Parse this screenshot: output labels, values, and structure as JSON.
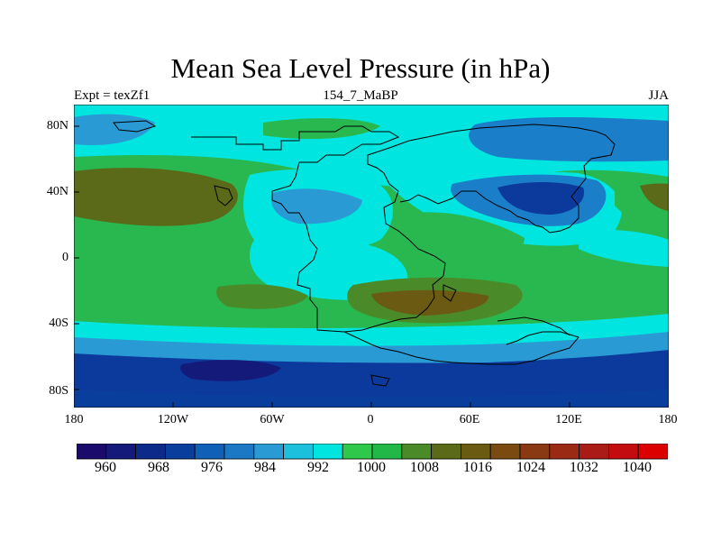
{
  "title": "Mean Sea Level Pressure (in hPa)",
  "subtitle_left": "Expt = texZf1",
  "subtitle_center": "154_7_MaBP",
  "subtitle_right": "JJA",
  "x_ticks": [
    "180",
    "120W",
    "60W",
    "0",
    "60E",
    "120E",
    "180"
  ],
  "y_ticks": [
    "80N",
    "40N",
    "0",
    "40S",
    "80S"
  ],
  "colorbar": {
    "colors": [
      "#1a0a6b",
      "#141a7a",
      "#0c2a8a",
      "#0a3e9c",
      "#1060b8",
      "#1a78c4",
      "#2a9ad4",
      "#1cc0dc",
      "#00e5e0",
      "#2ec84a",
      "#22b848",
      "#4a8a28",
      "#5a6a18",
      "#6a5a12",
      "#7a4a10",
      "#8a3a12",
      "#9a2a14",
      "#aa1a16",
      "#c20c10",
      "#dd0000"
    ],
    "labels": [
      "960",
      "968",
      "976",
      "984",
      "992",
      "1000",
      "1008",
      "1016",
      "1024",
      "1032",
      "1040"
    ]
  },
  "chart_data": {
    "type": "heatmap",
    "title": "Mean Sea Level Pressure (in hPa)",
    "variable": "Mean Sea Level Pressure",
    "units": "hPa",
    "season": "JJA",
    "experiment": "texZf1",
    "age": "154_7_MaBP",
    "x_range": [
      -180,
      180
    ],
    "y_range": [
      -90,
      90
    ],
    "contour_fills": [
      {
        "region": "background",
        "pressure": 1004
      },
      {
        "region": "north polar cap",
        "pressure": 998
      },
      {
        "region": "north Pacific high",
        "pressure": 1018,
        "lon": -135,
        "lat": 38
      },
      {
        "region": "north Pacific high core",
        "pressure": 1023,
        "lon": -140,
        "lat": 40
      },
      {
        "region": "eastern Pacific high",
        "pressure": 1018,
        "lon": 162,
        "lat": 39
      },
      {
        "region": "Asian low",
        "pressure": 993,
        "lon": 85,
        "lat": 40
      },
      {
        "region": "Asian low core",
        "pressure": 985,
        "lon": 92,
        "lat": 40
      },
      {
        "region": "Asian low center",
        "pressure": 978,
        "lon": 100,
        "lat": 44
      },
      {
        "region": "northeast Siberia low",
        "pressure": 993,
        "lon": 120,
        "lat": 78
      },
      {
        "region": "north Atlantic low",
        "pressure": 995,
        "lon": -170,
        "lat": 78
      },
      {
        "region": "North American low",
        "pressure": 996,
        "lon": -55,
        "lat": 40
      },
      {
        "region": "central equatorial low",
        "pressure": 999,
        "lon": -15,
        "lat": 5
      },
      {
        "region": "southern subtropical high",
        "pressure": 1016,
        "lon": 30,
        "lat": -32
      },
      {
        "region": "southern subtropical high core",
        "pressure": 1021,
        "lon": 20,
        "lat": -35
      },
      {
        "region": "south Pacific high",
        "pressure": 1015,
        "lon": -85,
        "lat": -28
      },
      {
        "region": "southern ocean band",
        "pressure": 993,
        "lat": -58
      },
      {
        "region": "southern ocean deep band",
        "pressure": 985,
        "lat": -70
      },
      {
        "region": "southern Pacific low core",
        "pressure": 970,
        "lon": -95,
        "lat": -69
      }
    ]
  }
}
